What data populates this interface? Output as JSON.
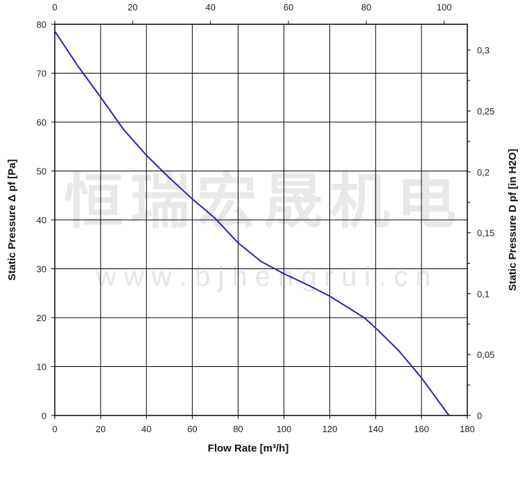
{
  "chart_data": {
    "type": "line",
    "xlabel": "Flow Rate [m³/h]",
    "ylabel": "Static Pressure Δ pf [Pa]",
    "y2label": "Static Pressure D pf [in H2O]",
    "xlim": [
      0,
      180
    ],
    "ylim": [
      0,
      80
    ],
    "x_ticks": [
      0,
      20,
      40,
      60,
      80,
      100,
      120,
      140,
      160,
      180
    ],
    "y_ticks": [
      0,
      10,
      20,
      30,
      40,
      50,
      60,
      70,
      80
    ],
    "y2_ticks": [
      "0",
      "0,05",
      "0,1",
      "0,15",
      "0,2",
      "0,25",
      "0,3"
    ],
    "y2_values": [
      0,
      0.05,
      0.1,
      0.15,
      0.2,
      0.25,
      0.3
    ],
    "x2_ticks": [
      0,
      20,
      40,
      60,
      80,
      100
    ],
    "grid": true,
    "line_color": "#2a1fb0",
    "series": [
      {
        "x": [
          0,
          10,
          20,
          30,
          40,
          50,
          60,
          70,
          80,
          90,
          100,
          110,
          120,
          135,
          140,
          150,
          160,
          172
        ],
        "y": [
          78.6,
          71.5,
          65.1,
          58.5,
          53.2,
          48.6,
          44.3,
          40.3,
          35.3,
          31.5,
          29,
          26.8,
          24.4,
          20,
          17.9,
          13.3,
          7.7,
          0
        ]
      }
    ]
  },
  "watermark": {
    "cn": "恒瑞宏晟机电",
    "url": "w w w . b j h e n g r u i . c n"
  }
}
